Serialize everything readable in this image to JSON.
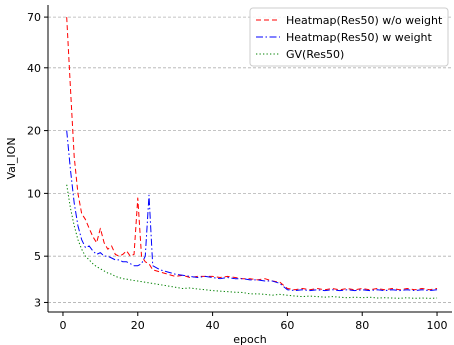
{
  "chart_data": {
    "type": "line",
    "title": "",
    "xlabel": "epoch",
    "ylabel": "Val_ION",
    "xlim": [
      -4,
      104
    ],
    "ylim": [
      2.7,
      80
    ],
    "yscale": "log",
    "xticks": [
      0,
      20,
      40,
      60,
      80,
      100
    ],
    "yticks": [
      3,
      5,
      10,
      20,
      40,
      70
    ],
    "grid": "y-dashed",
    "legend": "top-right",
    "series": [
      {
        "name": "Heatmap(Res50) w/o weight",
        "color": "#ff0000",
        "dash": "dashed",
        "points": [
          [
            1,
            70
          ],
          [
            2,
            32
          ],
          [
            3,
            15
          ],
          [
            4,
            10
          ],
          [
            5,
            8
          ],
          [
            6,
            7.5
          ],
          [
            7,
            6.8
          ],
          [
            8,
            6.2
          ],
          [
            9,
            5.8
          ],
          [
            10,
            6.8
          ],
          [
            11,
            5.8
          ],
          [
            12,
            5.4
          ],
          [
            13,
            5.6
          ],
          [
            14,
            5.1
          ],
          [
            15,
            5.0
          ],
          [
            16,
            5.1
          ],
          [
            17,
            5.3
          ],
          [
            18,
            5.0
          ],
          [
            19,
            5.1
          ],
          [
            20,
            9.5
          ],
          [
            21,
            5.0
          ],
          [
            22,
            4.7
          ],
          [
            23,
            4.6
          ],
          [
            24,
            4.3
          ],
          [
            26,
            4.2
          ],
          [
            28,
            4.1
          ],
          [
            30,
            4.0
          ],
          [
            32,
            4.05
          ],
          [
            34,
            3.95
          ],
          [
            36,
            4.0
          ],
          [
            38,
            4.0
          ],
          [
            40,
            4.0
          ],
          [
            42,
            3.95
          ],
          [
            44,
            4.0
          ],
          [
            46,
            3.95
          ],
          [
            48,
            3.9
          ],
          [
            50,
            3.9
          ],
          [
            52,
            3.85
          ],
          [
            54,
            3.9
          ],
          [
            56,
            3.8
          ],
          [
            58,
            3.75
          ],
          [
            60,
            3.5
          ],
          [
            62,
            3.45
          ],
          [
            64,
            3.5
          ],
          [
            66,
            3.45
          ],
          [
            68,
            3.5
          ],
          [
            70,
            3.45
          ],
          [
            72,
            3.5
          ],
          [
            74,
            3.45
          ],
          [
            76,
            3.5
          ],
          [
            78,
            3.45
          ],
          [
            80,
            3.5
          ],
          [
            82,
            3.45
          ],
          [
            84,
            3.5
          ],
          [
            86,
            3.45
          ],
          [
            88,
            3.5
          ],
          [
            90,
            3.45
          ],
          [
            92,
            3.5
          ],
          [
            94,
            3.45
          ],
          [
            96,
            3.5
          ],
          [
            98,
            3.45
          ],
          [
            100,
            3.5
          ]
        ]
      },
      {
        "name": "Heatmap(Res50) w weight",
        "color": "#0000ff",
        "dash": "dashdot",
        "points": [
          [
            1,
            20
          ],
          [
            2,
            13
          ],
          [
            3,
            9
          ],
          [
            4,
            7
          ],
          [
            5,
            6
          ],
          [
            6,
            5.5
          ],
          [
            7,
            5.6
          ],
          [
            8,
            5.3
          ],
          [
            9,
            5.1
          ],
          [
            10,
            5.2
          ],
          [
            11,
            5.0
          ],
          [
            12,
            5.0
          ],
          [
            13,
            4.9
          ],
          [
            14,
            4.8
          ],
          [
            15,
            4.8
          ],
          [
            16,
            4.7
          ],
          [
            17,
            4.7
          ],
          [
            18,
            4.6
          ],
          [
            19,
            4.5
          ],
          [
            20,
            4.5
          ],
          [
            21,
            4.6
          ],
          [
            22,
            5.0
          ],
          [
            23,
            9.8
          ],
          [
            24,
            4.5
          ],
          [
            25,
            4.4
          ],
          [
            26,
            4.3
          ],
          [
            28,
            4.2
          ],
          [
            30,
            4.1
          ],
          [
            32,
            4.05
          ],
          [
            34,
            4.0
          ],
          [
            36,
            3.95
          ],
          [
            38,
            4.0
          ],
          [
            40,
            3.95
          ],
          [
            42,
            3.9
          ],
          [
            44,
            3.95
          ],
          [
            46,
            3.9
          ],
          [
            48,
            3.9
          ],
          [
            50,
            3.85
          ],
          [
            52,
            3.85
          ],
          [
            54,
            3.8
          ],
          [
            56,
            3.8
          ],
          [
            58,
            3.7
          ],
          [
            60,
            3.45
          ],
          [
            62,
            3.42
          ],
          [
            64,
            3.45
          ],
          [
            66,
            3.42
          ],
          [
            68,
            3.45
          ],
          [
            70,
            3.42
          ],
          [
            72,
            3.45
          ],
          [
            74,
            3.42
          ],
          [
            76,
            3.45
          ],
          [
            78,
            3.42
          ],
          [
            80,
            3.45
          ],
          [
            82,
            3.42
          ],
          [
            84,
            3.45
          ],
          [
            86,
            3.42
          ],
          [
            88,
            3.45
          ],
          [
            90,
            3.42
          ],
          [
            92,
            3.45
          ],
          [
            94,
            3.42
          ],
          [
            96,
            3.45
          ],
          [
            98,
            3.42
          ],
          [
            100,
            3.45
          ]
        ]
      },
      {
        "name": "GV(Res50)",
        "color": "#008000",
        "dash": "dotted",
        "points": [
          [
            1,
            11
          ],
          [
            2,
            8.5
          ],
          [
            3,
            7
          ],
          [
            4,
            6
          ],
          [
            5,
            5.4
          ],
          [
            6,
            5.0
          ],
          [
            7,
            4.8
          ],
          [
            8,
            4.6
          ],
          [
            9,
            4.45
          ],
          [
            10,
            4.35
          ],
          [
            11,
            4.25
          ],
          [
            12,
            4.15
          ],
          [
            13,
            4.1
          ],
          [
            14,
            4.0
          ],
          [
            15,
            3.95
          ],
          [
            16,
            3.9
          ],
          [
            17,
            3.88
          ],
          [
            18,
            3.85
          ],
          [
            19,
            3.82
          ],
          [
            20,
            3.8
          ],
          [
            22,
            3.75
          ],
          [
            24,
            3.7
          ],
          [
            26,
            3.65
          ],
          [
            28,
            3.6
          ],
          [
            30,
            3.55
          ],
          [
            32,
            3.5
          ],
          [
            34,
            3.52
          ],
          [
            36,
            3.48
          ],
          [
            38,
            3.45
          ],
          [
            40,
            3.42
          ],
          [
            42,
            3.4
          ],
          [
            44,
            3.38
          ],
          [
            46,
            3.36
          ],
          [
            48,
            3.35
          ],
          [
            50,
            3.3
          ],
          [
            52,
            3.3
          ],
          [
            54,
            3.28
          ],
          [
            56,
            3.25
          ],
          [
            58,
            3.28
          ],
          [
            60,
            3.25
          ],
          [
            62,
            3.22
          ],
          [
            64,
            3.2
          ],
          [
            66,
            3.22
          ],
          [
            68,
            3.2
          ],
          [
            70,
            3.18
          ],
          [
            72,
            3.2
          ],
          [
            74,
            3.18
          ],
          [
            76,
            3.16
          ],
          [
            78,
            3.18
          ],
          [
            80,
            3.16
          ],
          [
            82,
            3.18
          ],
          [
            84,
            3.15
          ],
          [
            86,
            3.16
          ],
          [
            88,
            3.15
          ],
          [
            90,
            3.14
          ],
          [
            92,
            3.16
          ],
          [
            94,
            3.14
          ],
          [
            96,
            3.15
          ],
          [
            98,
            3.14
          ],
          [
            100,
            3.15
          ]
        ]
      }
    ]
  }
}
